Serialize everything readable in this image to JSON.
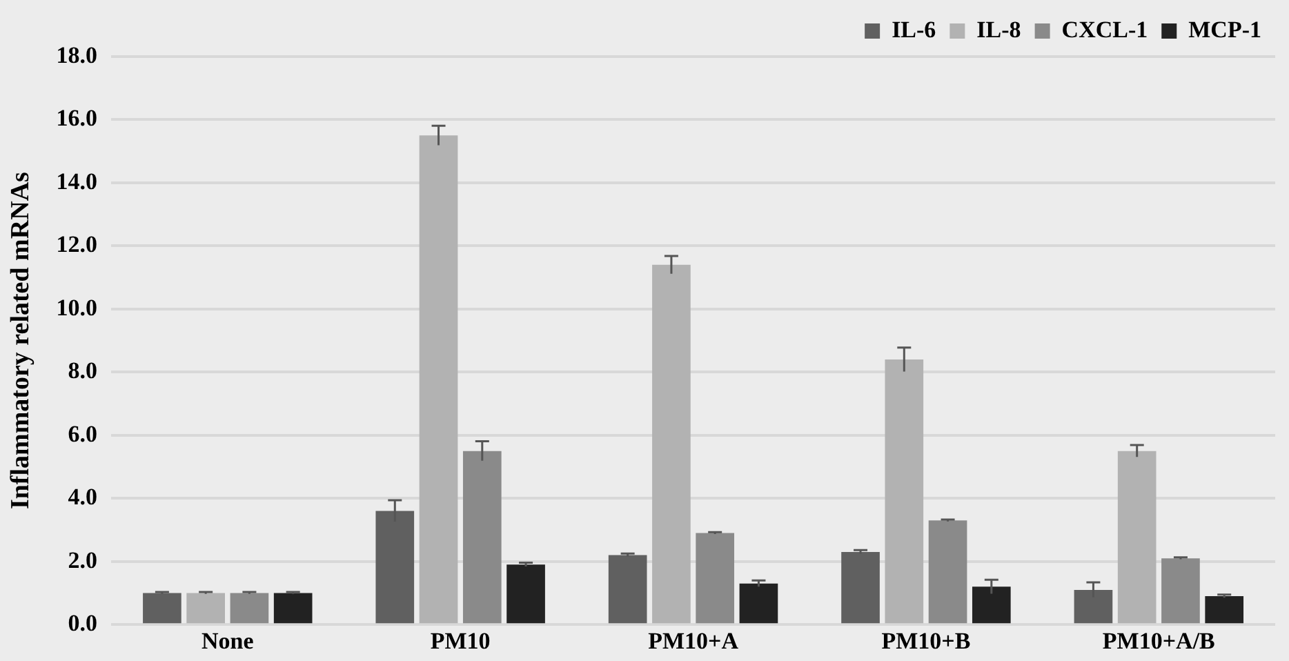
{
  "chart_data": {
    "type": "bar",
    "ylabel": "Inflammatory related mRNAs",
    "categories": [
      "None",
      "PM10",
      "PM10+A",
      "PM10+B",
      "PM10+A/B"
    ],
    "series": [
      {
        "name": "IL-6",
        "color": "#606060",
        "values": [
          1.0,
          3.6,
          2.2,
          2.3,
          1.1
        ],
        "errors": [
          0.03,
          0.34,
          0.05,
          0.06,
          0.24
        ]
      },
      {
        "name": "IL-8",
        "color": "#b2b2b2",
        "values": [
          1.0,
          15.5,
          11.4,
          8.4,
          5.5
        ],
        "errors": [
          0.03,
          0.31,
          0.28,
          0.38,
          0.19
        ]
      },
      {
        "name": "CXCL-1",
        "color": "#8a8a8a",
        "values": [
          1.0,
          5.5,
          2.9,
          3.3,
          2.1
        ],
        "errors": [
          0.03,
          0.31,
          0.03,
          0.03,
          0.03
        ]
      },
      {
        "name": "MCP-1",
        "color": "#222222",
        "values": [
          1.0,
          1.9,
          1.3,
          1.2,
          0.9
        ],
        "errors": [
          0.03,
          0.06,
          0.1,
          0.22,
          0.05
        ]
      }
    ],
    "ylim": [
      0,
      18
    ],
    "yticks": [
      {
        "value": 0,
        "label": "0.0"
      },
      {
        "value": 2,
        "label": "2.0"
      },
      {
        "value": 4,
        "label": "4.0"
      },
      {
        "value": 6,
        "label": "6.0"
      },
      {
        "value": 8,
        "label": "8.0"
      },
      {
        "value": 10,
        "label": "10.0"
      },
      {
        "value": 12,
        "label": "12.0"
      },
      {
        "value": 14,
        "label": "14.0"
      },
      {
        "value": 16,
        "label": "16.0"
      },
      {
        "value": 18,
        "label": "18.0"
      }
    ],
    "grid": "y",
    "legend": "top right"
  }
}
